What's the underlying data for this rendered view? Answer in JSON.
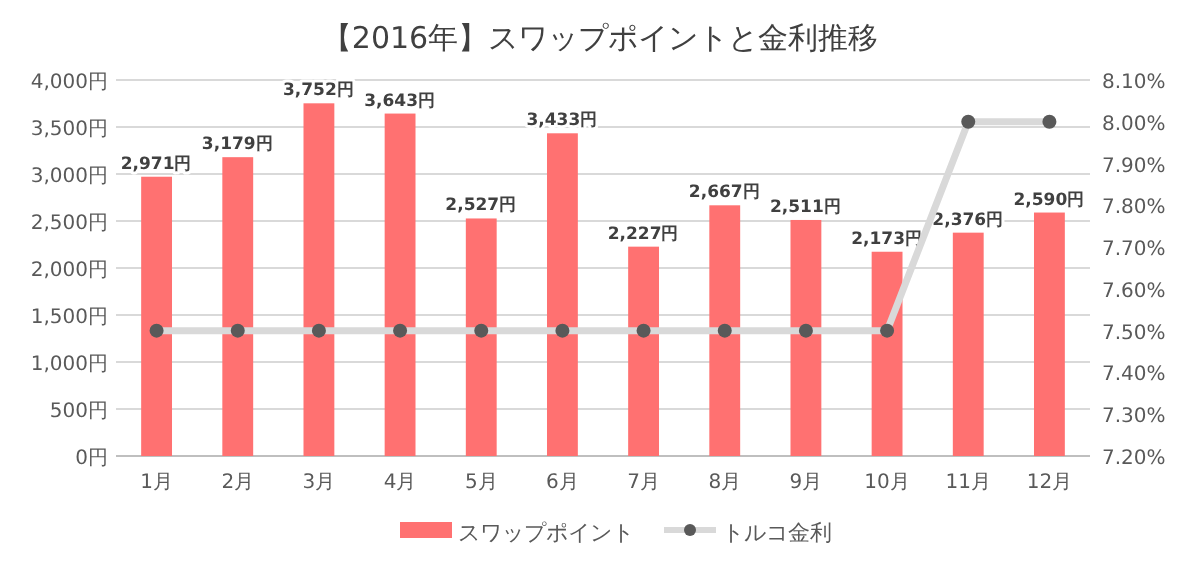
{
  "chart_data": {
    "type": "bar",
    "title": "【2016年】スワップポイントと金利推移",
    "categories": [
      "1月",
      "2月",
      "3月",
      "4月",
      "5月",
      "6月",
      "7月",
      "8月",
      "9月",
      "10月",
      "11月",
      "12月"
    ],
    "series": [
      {
        "name": "スワップポイント",
        "color": "#ff7171",
        "values": [
          2971,
          3179,
          3752,
          3643,
          2527,
          3433,
          2227,
          2667,
          2511,
          2173,
          2376,
          2590
        ],
        "value_labels": [
          "2,971円",
          "3,179円",
          "3,752円",
          "3,643円",
          "2,527円",
          "3,433円",
          "2,227円",
          "2,667円",
          "2,511円",
          "2,173円",
          "2,376円",
          "2,590円"
        ]
      },
      {
        "name": "トルコ金利",
        "type": "line",
        "axis": "y2",
        "color": "#d9d9d9",
        "marker": "circle",
        "values": [
          7.5,
          7.5,
          7.5,
          7.5,
          7.5,
          7.5,
          7.5,
          7.5,
          7.5,
          7.5,
          8.0,
          8.0
        ]
      }
    ],
    "ylim": [
      0,
      4000
    ],
    "yticks": [
      {
        "value": 0,
        "label": "0円"
      },
      {
        "value": 500,
        "label": "500円"
      },
      {
        "value": 1000,
        "label": "1,000円"
      },
      {
        "value": 1500,
        "label": "1,500円"
      },
      {
        "value": 2000,
        "label": "2,000円"
      },
      {
        "value": 2500,
        "label": "2,500円"
      },
      {
        "value": 3000,
        "label": "3,000円"
      },
      {
        "value": 3500,
        "label": "3,500円"
      },
      {
        "value": 4000,
        "label": "4,000円"
      }
    ],
    "y2lim": [
      7.2,
      8.1
    ],
    "y2ticks": [
      {
        "value": 7.2,
        "label": "7.20%"
      },
      {
        "value": 7.3,
        "label": "7.30%"
      },
      {
        "value": 7.4,
        "label": "7.40%"
      },
      {
        "value": 7.5,
        "label": "7.50%"
      },
      {
        "value": 7.6,
        "label": "7.60%"
      },
      {
        "value": 7.7,
        "label": "7.70%"
      },
      {
        "value": 7.8,
        "label": "7.80%"
      },
      {
        "value": 7.9,
        "label": "7.90%"
      },
      {
        "value": 8.0,
        "label": "8.00%"
      },
      {
        "value": 8.1,
        "label": "8.10%"
      }
    ],
    "grid": "y",
    "legend": "bottom"
  }
}
